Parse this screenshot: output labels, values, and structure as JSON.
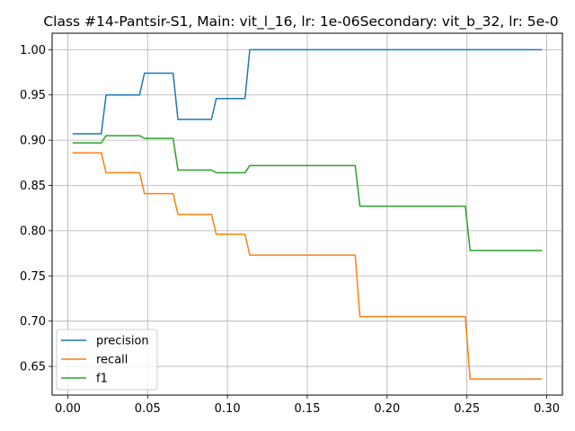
{
  "chart_data": {
    "type": "line",
    "title": "Class #14-Pantsir-S1, Main: vit_l_16, lr: 1e-06Secondary: vit_b_32, lr: 5e-0",
    "xlabel": "",
    "ylabel": "",
    "xlim": [
      -0.0098,
      0.3098
    ],
    "ylim": [
      0.6183,
      1.0182
    ],
    "xticks": [
      0.0,
      0.05,
      0.1,
      0.15,
      0.2,
      0.25,
      0.3
    ],
    "xtick_labels": [
      "0.00",
      "0.05",
      "0.10",
      "0.15",
      "0.20",
      "0.25",
      "0.30"
    ],
    "yticks": [
      0.65,
      0.7,
      0.75,
      0.8,
      0.85,
      0.9,
      0.95,
      1.0
    ],
    "ytick_labels": [
      "0.65",
      "0.70",
      "0.75",
      "0.80",
      "0.85",
      "0.90",
      "0.95",
      "1.00"
    ],
    "grid": true,
    "legend": "lower-left",
    "series": [
      {
        "name": "precision",
        "color": "#1f77b4",
        "x": [
          0.003,
          0.021,
          0.024,
          0.045,
          0.048,
          0.066,
          0.069,
          0.09,
          0.093,
          0.111,
          0.114,
          0.297
        ],
        "y": [
          0.907,
          0.907,
          0.95,
          0.95,
          0.974,
          0.974,
          0.923,
          0.923,
          0.946,
          0.946,
          1.0,
          1.0
        ]
      },
      {
        "name": "recall",
        "color": "#ff7f0e",
        "x": [
          0.003,
          0.021,
          0.024,
          0.045,
          0.048,
          0.066,
          0.069,
          0.09,
          0.093,
          0.111,
          0.114,
          0.18,
          0.183,
          0.249,
          0.252,
          0.297
        ],
        "y": [
          0.886,
          0.886,
          0.864,
          0.864,
          0.841,
          0.841,
          0.818,
          0.818,
          0.796,
          0.796,
          0.773,
          0.773,
          0.705,
          0.705,
          0.636,
          0.636
        ]
      },
      {
        "name": "f1",
        "color": "#2ca02c",
        "x": [
          0.003,
          0.021,
          0.024,
          0.045,
          0.048,
          0.066,
          0.069,
          0.09,
          0.093,
          0.111,
          0.114,
          0.18,
          0.183,
          0.249,
          0.252,
          0.297
        ],
        "y": [
          0.897,
          0.897,
          0.905,
          0.905,
          0.902,
          0.902,
          0.867,
          0.867,
          0.864,
          0.864,
          0.872,
          0.872,
          0.827,
          0.827,
          0.778,
          0.778
        ]
      }
    ]
  }
}
